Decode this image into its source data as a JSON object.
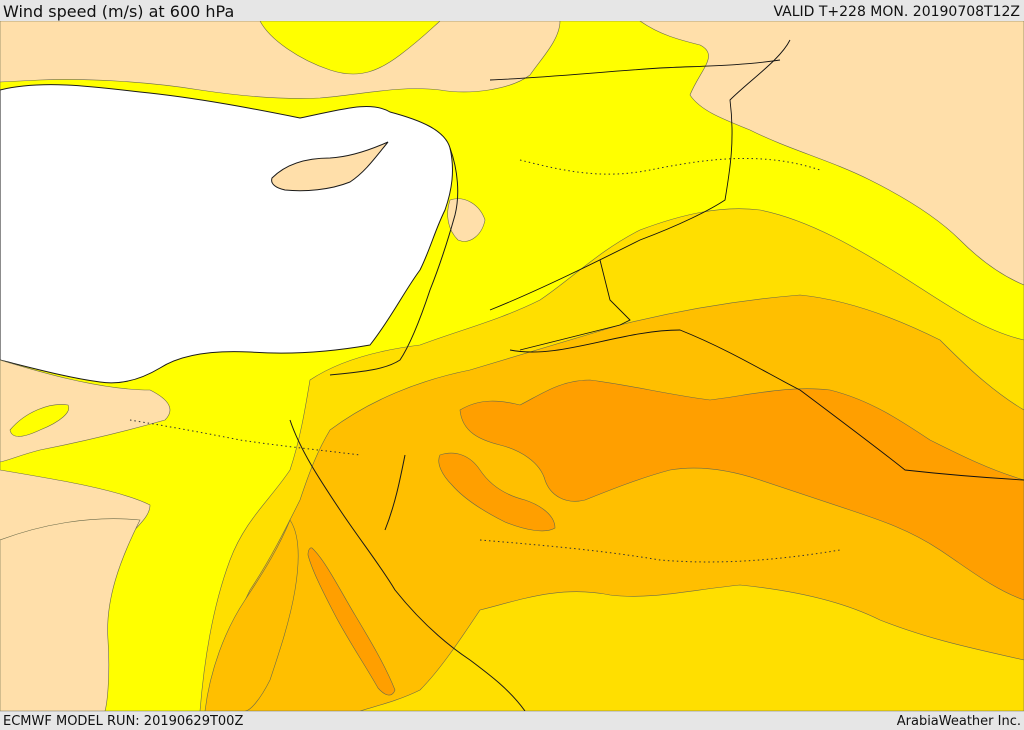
{
  "header": {
    "title": "Wind speed (m/s) at 600 hPa",
    "valid": "VALID T+228 MON. 20190708T12Z"
  },
  "footer": {
    "model_run": "ECMWF MODEL RUN: 20190629T00Z",
    "credit": "ArabiaWeather Inc."
  },
  "colors": {
    "sea": "#ffffff",
    "calm_land": "#ffdfaa",
    "band_1": "#ffff00",
    "band_2": "#ffdf00",
    "band_3": "#ffbf00",
    "band_4": "#ff9f00"
  },
  "icons": [
    "map-canvas"
  ]
}
